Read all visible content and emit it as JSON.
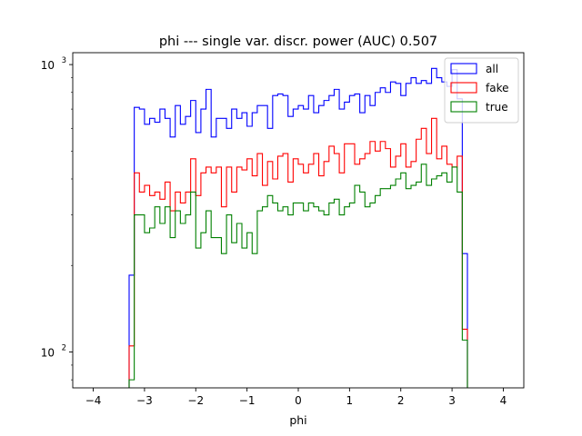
{
  "chart_data": {
    "type": "step",
    "title": "phi --- single var. discr. power (AUC) 0.507",
    "xlabel": "phi",
    "ylabel": "",
    "xlim": [
      -4.4,
      4.4
    ],
    "ylim": [
      75,
      1100
    ],
    "yscale": "log",
    "x_ticks": [
      -4,
      -3,
      -2,
      -1,
      0,
      1,
      2,
      3,
      4
    ],
    "x_tick_labels": [
      "−4",
      "−3",
      "−2",
      "−1",
      "0",
      "1",
      "2",
      "3",
      "4"
    ],
    "y_tick_labels": [
      {
        "value": 100,
        "base": "10",
        "exp": "2"
      },
      {
        "value": 1000,
        "base": "10",
        "exp": "3"
      }
    ],
    "legend_position": "upper-right",
    "bin_edges_range": [
      -3.3,
      3.3
    ],
    "n_bins": 66,
    "series": [
      {
        "name": "all",
        "color": "#0000ff",
        "values": [
          185,
          710,
          700,
          620,
          650,
          630,
          700,
          650,
          560,
          720,
          620,
          660,
          750,
          580,
          700,
          820,
          560,
          650,
          650,
          600,
          700,
          650,
          680,
          610,
          680,
          720,
          720,
          600,
          780,
          790,
          780,
          660,
          700,
          720,
          700,
          780,
          680,
          720,
          750,
          780,
          820,
          700,
          740,
          780,
          790,
          680,
          780,
          720,
          800,
          830,
          800,
          870,
          860,
          780,
          860,
          900,
          860,
          880,
          860,
          970,
          900,
          870,
          840,
          960,
          760,
          220
        ]
      },
      {
        "name": "fake",
        "color": "#ff0000",
        "values": [
          105,
          420,
          360,
          380,
          350,
          360,
          340,
          390,
          310,
          360,
          330,
          360,
          470,
          350,
          420,
          440,
          420,
          440,
          320,
          440,
          360,
          440,
          430,
          470,
          410,
          490,
          380,
          460,
          400,
          480,
          490,
          390,
          470,
          450,
          420,
          450,
          490,
          410,
          460,
          520,
          490,
          420,
          530,
          530,
          450,
          470,
          490,
          540,
          500,
          540,
          510,
          440,
          480,
          530,
          440,
          460,
          550,
          600,
          490,
          650,
          470,
          520,
          450,
          440,
          480,
          120
        ]
      },
      {
        "name": "true",
        "color": "#008000",
        "values": [
          80,
          300,
          300,
          260,
          270,
          320,
          280,
          320,
          250,
          310,
          280,
          300,
          360,
          230,
          260,
          310,
          250,
          250,
          220,
          300,
          240,
          280,
          230,
          260,
          220,
          310,
          320,
          350,
          330,
          310,
          320,
          300,
          330,
          330,
          310,
          330,
          320,
          310,
          300,
          330,
          340,
          300,
          320,
          330,
          380,
          360,
          320,
          330,
          350,
          370,
          370,
          380,
          400,
          420,
          370,
          380,
          390,
          450,
          380,
          400,
          410,
          420,
          390,
          440,
          360,
          110
        ]
      }
    ]
  }
}
